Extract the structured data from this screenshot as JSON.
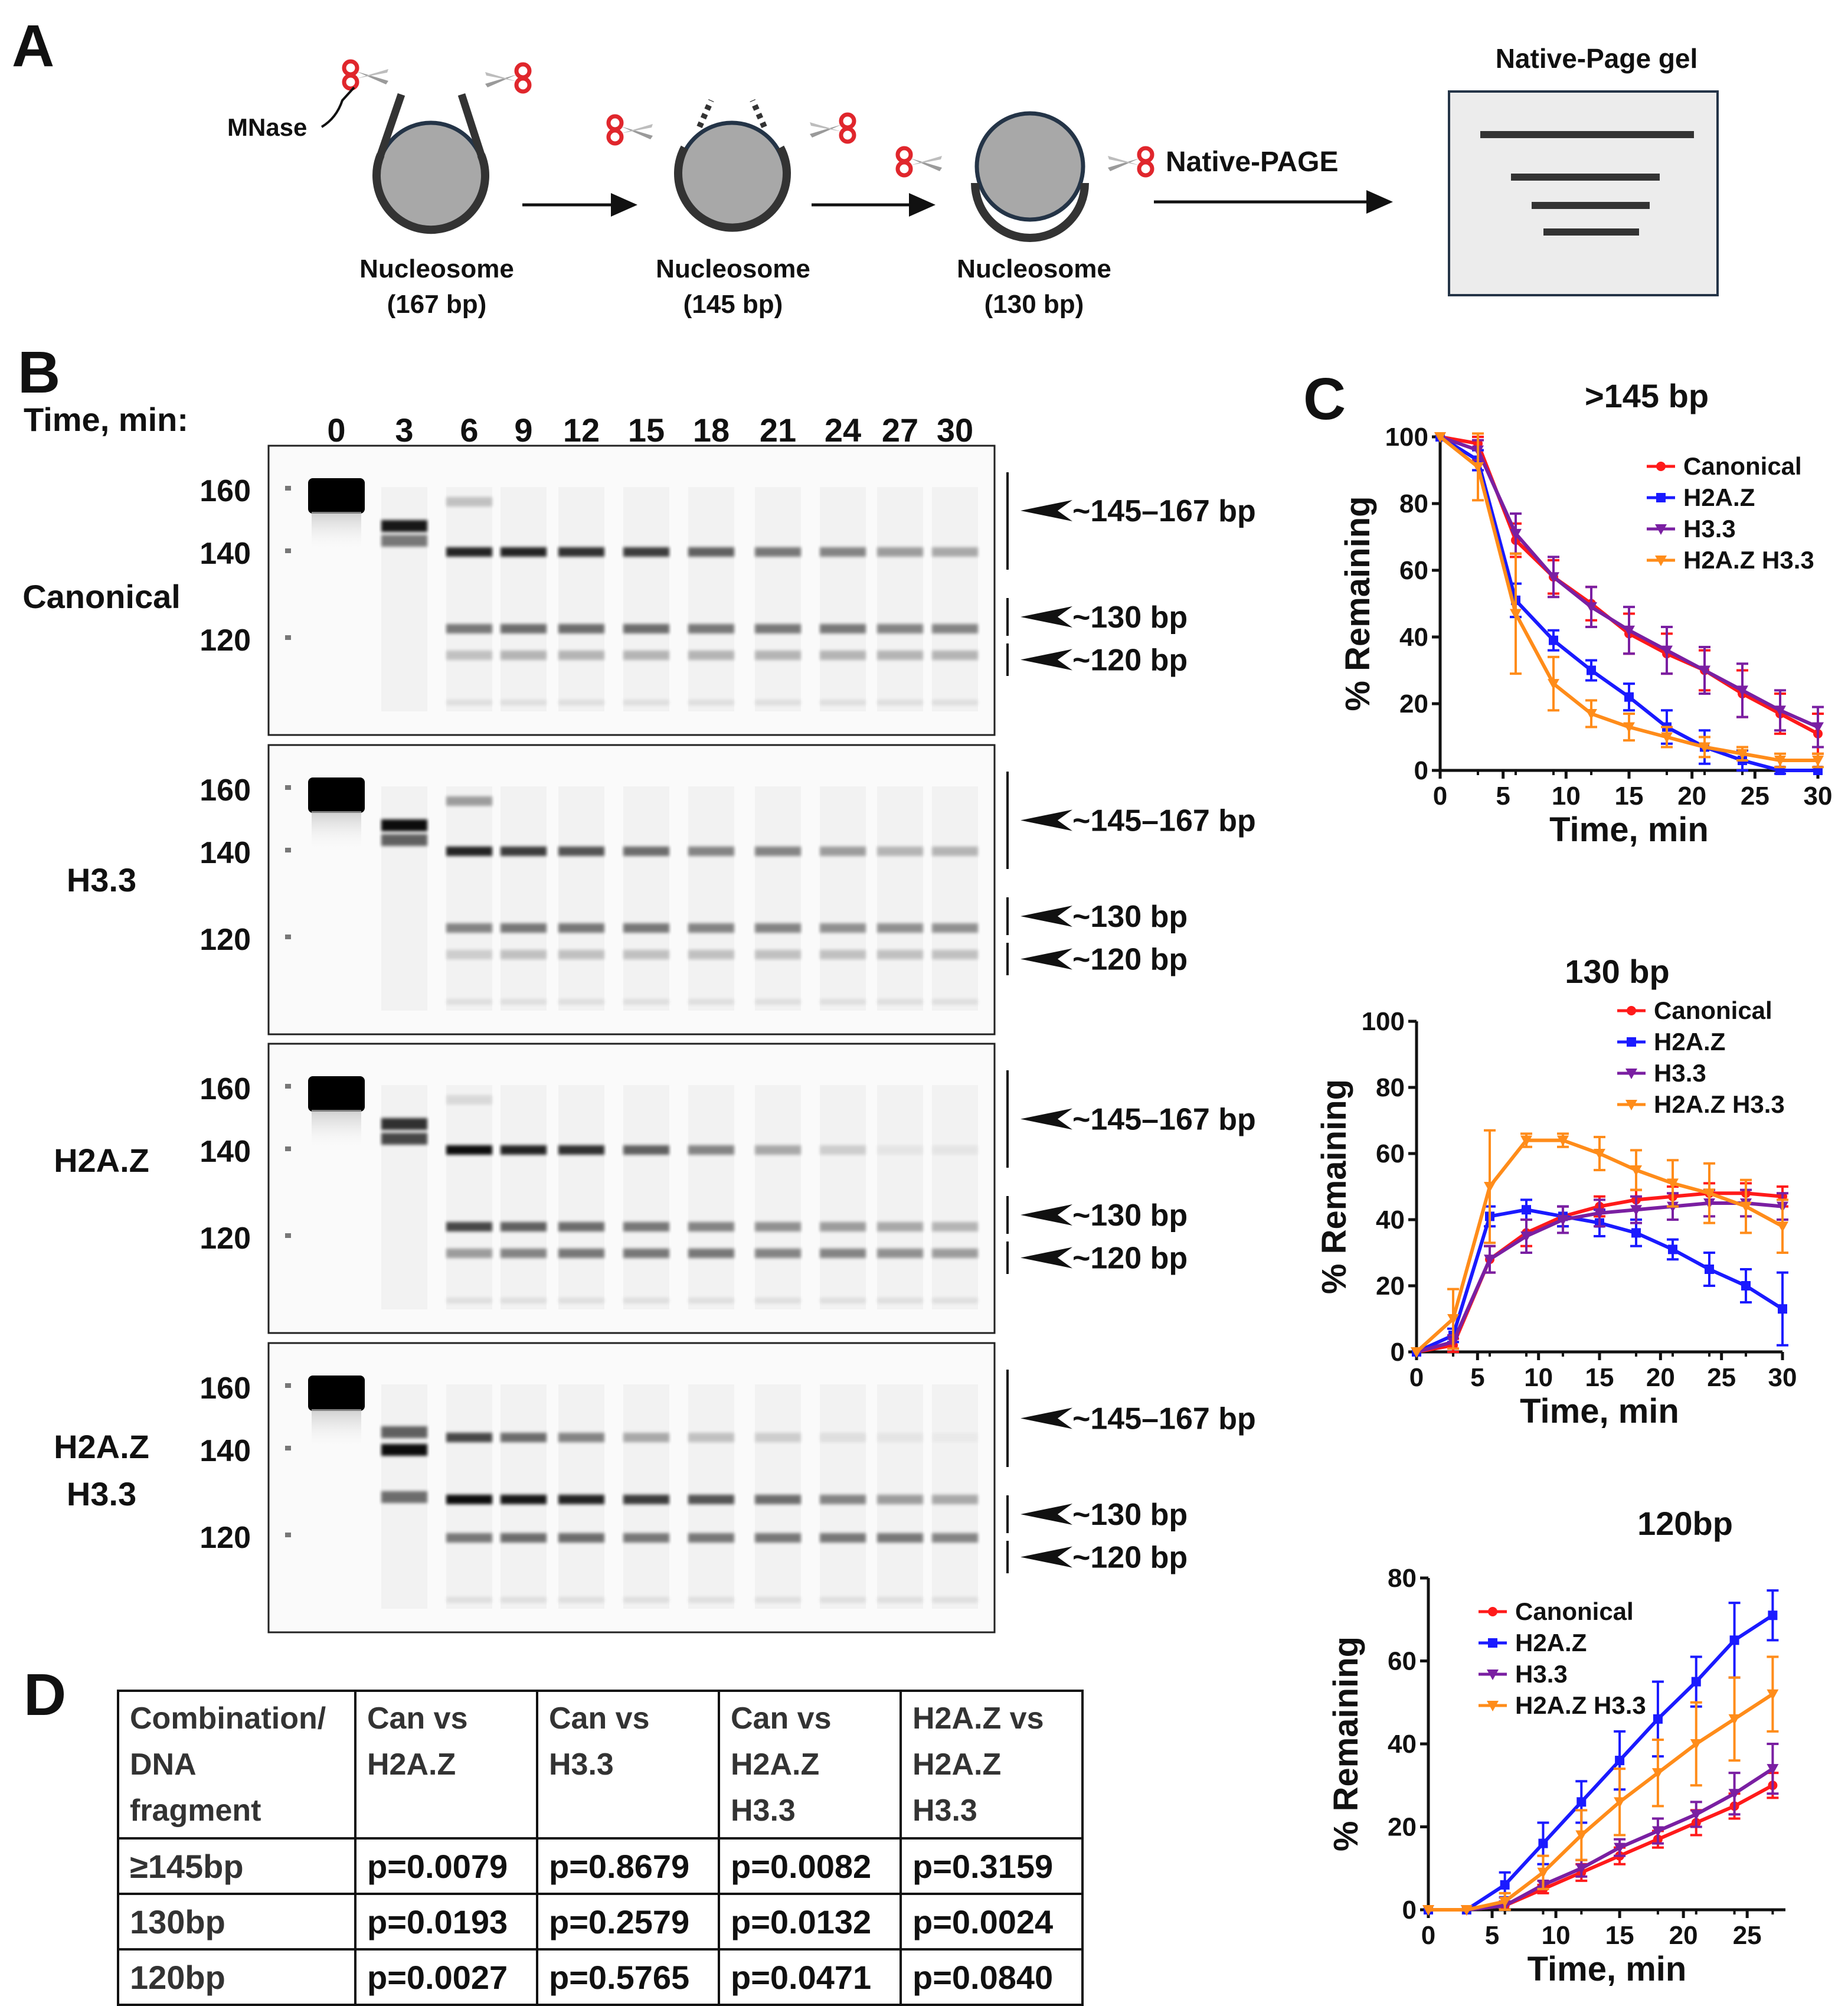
{
  "panels": {
    "a": "A",
    "b": "B",
    "c": "C",
    "d": "D"
  },
  "schematic": {
    "mnase_label": "MNase",
    "nucleosome_label": "Nucleosome",
    "sizes": [
      "(167 bp)",
      "(145 bp)",
      "(130 bp)"
    ],
    "arrow_label": "Native-PAGE",
    "gel_title": "Native-Page gel"
  },
  "gels": {
    "time_label": "Time, min:",
    "time_points": [
      "0",
      "3",
      "6",
      "9",
      "12",
      "15",
      "18",
      "21",
      "24",
      "27",
      "30"
    ],
    "ladder": [
      "160",
      "140",
      "120"
    ],
    "annotations": [
      "~145–167 bp",
      "~130 bp",
      "~120 bp"
    ],
    "samples": [
      {
        "name_lines": [
          "Canonical"
        ]
      },
      {
        "name_lines": [
          "H3.3"
        ]
      },
      {
        "name_lines": [
          "H2A.Z"
        ]
      },
      {
        "name_lines": [
          "H2A.Z",
          "H3.3"
        ]
      }
    ]
  },
  "colors": {
    "canonical": "#ff1a1a",
    "h2az": "#1a1aff",
    "h33": "#7a1fa2",
    "h2az_h33": "#ff8c1a"
  },
  "chart_data": [
    {
      "type": "line",
      "title": ">145 bp",
      "xlabel": "Time, min",
      "ylabel": "% Remaining",
      "xlim": [
        0,
        30
      ],
      "ylim": [
        0,
        100
      ],
      "xticks": [
        "0",
        "5",
        "10",
        "15",
        "20",
        "25",
        "30"
      ],
      "yticks": [
        "0",
        "20",
        "40",
        "60",
        "80",
        "100"
      ],
      "x": [
        0,
        3,
        6,
        9,
        12,
        15,
        18,
        21,
        24,
        27,
        30
      ],
      "series": [
        {
          "name": "Canonical",
          "color": "#ff1a1a",
          "marker": "circle",
          "values": [
            100,
            98,
            69,
            58,
            50,
            41,
            35,
            30,
            23,
            17,
            11
          ],
          "errors": [
            0,
            2,
            5,
            5,
            5,
            6,
            6,
            6,
            7,
            6,
            6
          ]
        },
        {
          "name": "H2A.Z",
          "color": "#1a1aff",
          "marker": "square",
          "values": [
            100,
            93,
            51,
            39,
            30,
            22,
            13,
            7,
            3,
            0,
            0
          ],
          "errors": [
            0,
            3,
            5,
            3,
            3,
            4,
            5,
            5,
            3,
            1,
            0
          ]
        },
        {
          "name": "H3.3",
          "color": "#7a1fa2",
          "marker": "triangle-down",
          "values": [
            100,
            96,
            71,
            58,
            49,
            42,
            36,
            30,
            24,
            18,
            13
          ],
          "errors": [
            0,
            3,
            6,
            6,
            6,
            7,
            7,
            7,
            8,
            6,
            6
          ]
        },
        {
          "name": "H2A.Z H3.3",
          "color": "#ff8c1a",
          "marker": "triangle-down",
          "values": [
            100,
            91,
            47,
            26,
            17,
            13,
            10,
            7,
            5,
            3,
            3
          ],
          "errors": [
            0,
            10,
            18,
            8,
            4,
            4,
            3,
            3,
            2,
            2,
            2
          ]
        }
      ]
    },
    {
      "type": "line",
      "title": "130 bp",
      "xlabel": "Time, min",
      "ylabel": "% Remaining",
      "xlim": [
        0,
        30
      ],
      "ylim": [
        0,
        100
      ],
      "xticks": [
        "0",
        "5",
        "10",
        "15",
        "20",
        "25",
        "30"
      ],
      "yticks": [
        "0",
        "20",
        "40",
        "60",
        "80",
        "100"
      ],
      "x": [
        0,
        3,
        6,
        9,
        12,
        15,
        18,
        21,
        24,
        27,
        30
      ],
      "series": [
        {
          "name": "Canonical",
          "color": "#ff1a1a",
          "marker": "circle",
          "values": [
            0,
            2,
            28,
            36,
            41,
            44,
            46,
            47,
            48,
            48,
            47
          ],
          "errors": [
            0,
            2,
            4,
            4,
            3,
            3,
            3,
            3,
            3,
            3,
            3
          ]
        },
        {
          "name": "H2A.Z",
          "color": "#1a1aff",
          "marker": "square",
          "values": [
            0,
            5,
            41,
            43,
            41,
            39,
            36,
            31,
            25,
            20,
            13
          ],
          "errors": [
            0,
            2,
            3,
            3,
            3,
            4,
            4,
            3,
            5,
            5,
            11
          ]
        },
        {
          "name": "H3.3",
          "color": "#7a1fa2",
          "marker": "triangle-down",
          "values": [
            0,
            3,
            28,
            35,
            40,
            42,
            43,
            44,
            45,
            45,
            44
          ],
          "errors": [
            0,
            2,
            4,
            5,
            4,
            4,
            4,
            4,
            4,
            4,
            4
          ]
        },
        {
          "name": "H2A.Z H3.3",
          "color": "#ff8c1a",
          "marker": "triangle-down",
          "values": [
            0,
            10,
            50,
            64,
            64,
            60,
            55,
            51,
            48,
            44,
            38
          ],
          "errors": [
            0,
            9,
            17,
            2,
            2,
            5,
            6,
            7,
            9,
            8,
            8
          ]
        }
      ]
    },
    {
      "type": "line",
      "title": "120bp",
      "xlabel": "Time, min",
      "ylabel": "% Remaining",
      "xlim": [
        0,
        28
      ],
      "ylim": [
        0,
        80
      ],
      "xticks": [
        "0",
        "5",
        "10",
        "15",
        "20",
        "25"
      ],
      "yticks": [
        "0",
        "20",
        "40",
        "60",
        "80"
      ],
      "x": [
        0,
        3,
        6,
        9,
        12,
        15,
        18,
        21,
        24,
        27
      ],
      "series": [
        {
          "name": "Canonical",
          "color": "#ff1a1a",
          "marker": "circle",
          "values": [
            0,
            0,
            1,
            5,
            9,
            13,
            17,
            21,
            25,
            30
          ],
          "errors": [
            0,
            0,
            1,
            1,
            2,
            2,
            2,
            3,
            3,
            3
          ]
        },
        {
          "name": "H2A.Z",
          "color": "#1a1aff",
          "marker": "square",
          "values": [
            0,
            0,
            6,
            16,
            26,
            36,
            46,
            55,
            65,
            71
          ],
          "errors": [
            0,
            0,
            3,
            5,
            5,
            7,
            9,
            6,
            9,
            6
          ]
        },
        {
          "name": "H3.3",
          "color": "#7a1fa2",
          "marker": "triangle-down",
          "values": [
            0,
            0,
            1,
            6,
            10,
            15,
            19,
            23,
            28,
            34
          ],
          "errors": [
            0,
            0,
            1,
            1,
            2,
            2,
            3,
            3,
            5,
            6
          ]
        },
        {
          "name": "H2A.Z H3.3",
          "color": "#ff8c1a",
          "marker": "triangle-down",
          "values": [
            0,
            0,
            2,
            9,
            18,
            26,
            33,
            40,
            46,
            52
          ],
          "errors": [
            0,
            0,
            2,
            4,
            6,
            8,
            8,
            10,
            10,
            9
          ]
        }
      ]
    }
  ],
  "table": {
    "header": [
      "Combination/\nDNA\nfragment",
      "Can vs\nH2A.Z",
      "Can vs\nH3.3",
      "Can vs\nH2A.Z\nH3.3",
      "H2A.Z vs\nH2A.Z\nH3.3"
    ],
    "rows": [
      [
        "≥145bp",
        "p=0.0079",
        "p=0.8679",
        "p=0.0082",
        "p=0.3159"
      ],
      [
        "130bp",
        "p=0.0193",
        "p=0.2579",
        "p=0.0132",
        "p=0.0024"
      ],
      [
        "120bp",
        "p=0.0027",
        "p=0.5765",
        "p=0.0471",
        "p=0.0840"
      ]
    ]
  }
}
